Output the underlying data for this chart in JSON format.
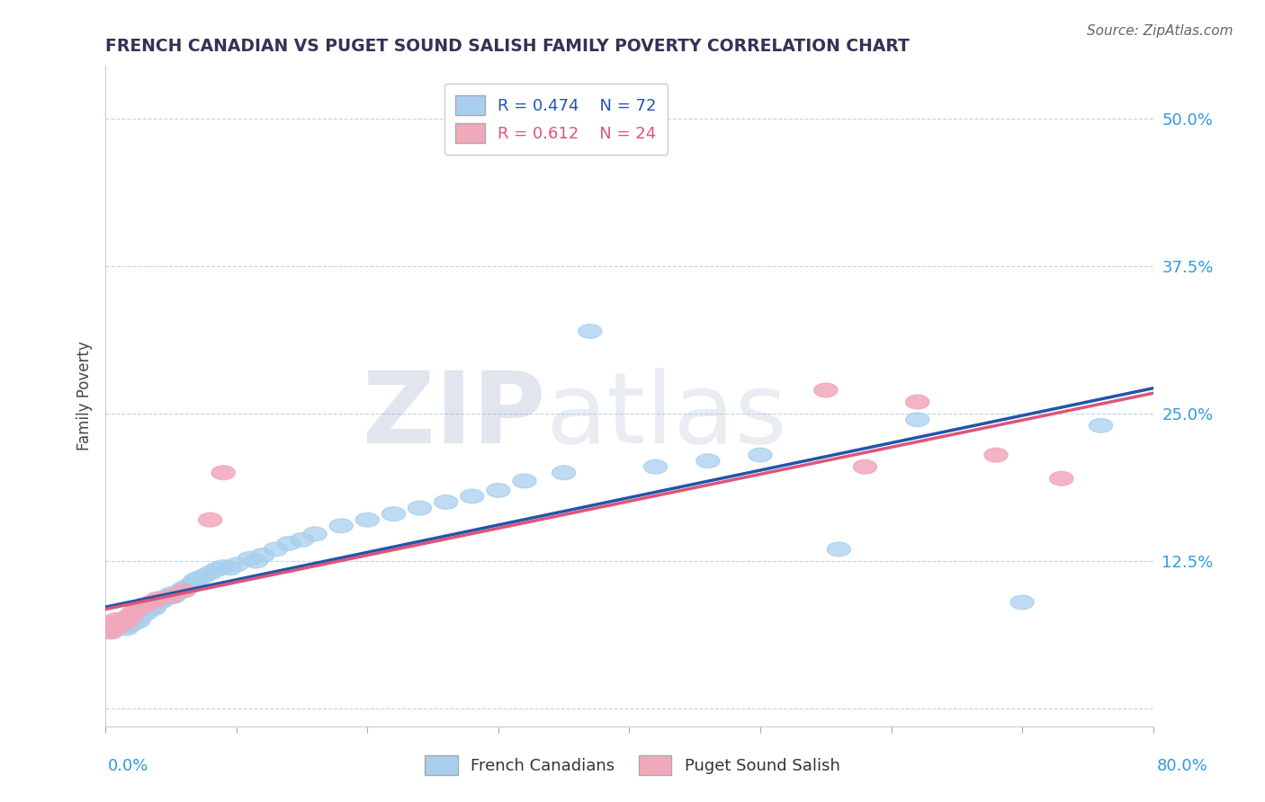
{
  "title": "FRENCH CANADIAN VS PUGET SOUND SALISH FAMILY POVERTY CORRELATION CHART",
  "source": "Source: ZipAtlas.com",
  "ylabel": "Family Poverty",
  "ytick_vals": [
    0.0,
    0.125,
    0.25,
    0.375,
    0.5
  ],
  "ytick_labels": [
    "",
    "12.5%",
    "25.0%",
    "37.5%",
    "50.0%"
  ],
  "xlim": [
    0.0,
    0.8
  ],
  "ylim": [
    -0.015,
    0.545
  ],
  "blue_R": 0.474,
  "blue_N": 72,
  "pink_R": 0.612,
  "pink_N": 24,
  "blue_color": "#A8CFEE",
  "pink_color": "#F2A8BB",
  "blue_line_color": "#2255AA",
  "pink_line_color": "#DD5577",
  "watermark_ZIP": "ZIP",
  "watermark_atlas": "atlas",
  "blue_x": [
    0.005,
    0.008,
    0.01,
    0.011,
    0.012,
    0.013,
    0.014,
    0.015,
    0.016,
    0.017,
    0.018,
    0.019,
    0.02,
    0.021,
    0.022,
    0.023,
    0.024,
    0.025,
    0.026,
    0.027,
    0.028,
    0.03,
    0.031,
    0.032,
    0.034,
    0.035,
    0.037,
    0.038,
    0.04,
    0.042,
    0.043,
    0.045,
    0.047,
    0.05,
    0.052,
    0.055,
    0.058,
    0.06,
    0.063,
    0.065,
    0.068,
    0.07,
    0.075,
    0.08,
    0.085,
    0.09,
    0.095,
    0.1,
    0.11,
    0.115,
    0.12,
    0.13,
    0.14,
    0.15,
    0.16,
    0.18,
    0.2,
    0.22,
    0.24,
    0.26,
    0.28,
    0.3,
    0.32,
    0.35,
    0.37,
    0.42,
    0.46,
    0.5,
    0.56,
    0.62,
    0.7,
    0.76
  ],
  "blue_y": [
    0.065,
    0.07,
    0.068,
    0.072,
    0.071,
    0.069,
    0.073,
    0.075,
    0.068,
    0.074,
    0.07,
    0.076,
    0.072,
    0.078,
    0.073,
    0.077,
    0.079,
    0.074,
    0.08,
    0.078,
    0.082,
    0.083,
    0.081,
    0.085,
    0.084,
    0.086,
    0.085,
    0.088,
    0.09,
    0.092,
    0.091,
    0.093,
    0.095,
    0.097,
    0.095,
    0.098,
    0.1,
    0.102,
    0.103,
    0.105,
    0.108,
    0.11,
    0.112,
    0.115,
    0.118,
    0.12,
    0.119,
    0.122,
    0.127,
    0.125,
    0.13,
    0.135,
    0.14,
    0.143,
    0.148,
    0.155,
    0.16,
    0.165,
    0.17,
    0.175,
    0.18,
    0.185,
    0.193,
    0.2,
    0.32,
    0.205,
    0.21,
    0.215,
    0.135,
    0.245,
    0.09,
    0.24
  ],
  "pink_x": [
    0.003,
    0.005,
    0.007,
    0.008,
    0.01,
    0.012,
    0.014,
    0.016,
    0.018,
    0.02,
    0.022,
    0.025,
    0.03,
    0.035,
    0.04,
    0.05,
    0.06,
    0.08,
    0.09,
    0.55,
    0.58,
    0.62,
    0.68,
    0.73
  ],
  "pink_y": [
    0.065,
    0.072,
    0.068,
    0.075,
    0.07,
    0.073,
    0.076,
    0.074,
    0.078,
    0.08,
    0.082,
    0.085,
    0.088,
    0.09,
    0.093,
    0.095,
    0.1,
    0.16,
    0.2,
    0.27,
    0.205,
    0.26,
    0.215,
    0.195
  ],
  "blue_trendline": [
    0.07,
    0.245
  ],
  "pink_trendline": [
    0.072,
    0.258
  ]
}
